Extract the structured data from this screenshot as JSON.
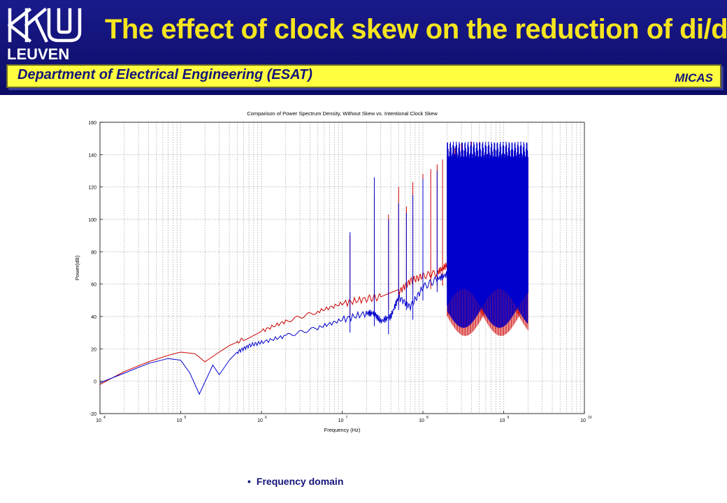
{
  "header": {
    "logo_text": "LEUVEN",
    "title": "The effect of clock skew on the reduction of di/dt",
    "department": "Department of Electrical Engineering (ESAT)",
    "group": "MICAS"
  },
  "colors": {
    "header_bg": "#0c0c66",
    "title": "#f5e51f",
    "band": "#ffff40",
    "text": "#14147a",
    "series_without_skew": "#cc0000",
    "series_skew": "#0000cc"
  },
  "bullet": {
    "marker": "•",
    "text": "Frequency  domain"
  },
  "chart_data": {
    "type": "line",
    "title": "Comparison of Power Spectrum Density, Without Skew vs. Intentional Clock Skew",
    "xlabel": "Frequency (Hz)",
    "ylabel": "Power(dB)",
    "xscale": "log",
    "xlim": [
      10000,
      10000000000
    ],
    "ylim": [
      -20,
      160
    ],
    "grid": true,
    "x_ticks": [
      {
        "base": "10",
        "exp": "4"
      },
      {
        "base": "10",
        "exp": "5"
      },
      {
        "base": "10",
        "exp": "6"
      },
      {
        "base": "10",
        "exp": "7"
      },
      {
        "base": "10",
        "exp": "8"
      },
      {
        "base": "10",
        "exp": "9"
      },
      {
        "base": "10",
        "exp": "10"
      }
    ],
    "y_ticks": [
      "-20",
      "0",
      "20",
      "40",
      "60",
      "80",
      "100",
      "120",
      "140",
      "160"
    ],
    "series": [
      {
        "color": "#cc0000",
        "x": [
          10000,
          20000,
          40000,
          70000,
          100000,
          150000,
          200000,
          300000,
          400000,
          600000,
          1000000,
          2000000,
          5000000,
          10000000,
          20000000,
          30000000,
          50000000,
          70000000,
          100000000,
          150000000,
          200000000,
          300000000,
          500000000,
          700000000,
          1000000000,
          2000000000
        ],
        "y": [
          -2,
          6,
          12,
          16,
          18,
          17,
          12,
          18,
          22,
          26,
          31,
          37,
          43,
          48,
          51,
          52,
          55,
          62,
          65,
          67,
          72,
          76,
          82,
          86,
          88,
          90
        ],
        "peaks": [
          {
            "x": 12500000,
            "y": 90
          },
          {
            "x": 25000000,
            "y": 115
          },
          {
            "x": 37500000,
            "y": 103
          },
          {
            "x": 50000000,
            "y": 120
          },
          {
            "x": 62500000,
            "y": 108
          },
          {
            "x": 75000000,
            "y": 123
          },
          {
            "x": 100000000,
            "y": 128
          },
          {
            "x": 125000000,
            "y": 131
          },
          {
            "x": 150000000,
            "y": 134
          },
          {
            "x": 175000000,
            "y": 137
          },
          {
            "x": 200000000,
            "y": 140
          },
          {
            "x": 250000000,
            "y": 144
          },
          {
            "x": 300000000,
            "y": 147
          },
          {
            "x": 400000000,
            "y": 148
          },
          {
            "x": 500000000,
            "y": 148
          }
        ]
      },
      {
        "color": "#0000cc",
        "x": [
          10000,
          20000,
          40000,
          70000,
          100000,
          130000,
          170000,
          250000,
          300000,
          400000,
          500000,
          700000,
          1000000,
          2000000,
          5000000,
          10000000,
          20000000,
          25000000,
          30000000,
          40000000,
          50000000,
          70000000,
          100000000,
          150000000,
          200000000,
          300000000,
          500000000,
          700000000,
          1000000000,
          2000000000
        ],
        "y": [
          -1,
          5,
          11,
          14,
          13,
          5,
          -8,
          10,
          4,
          13,
          18,
          22,
          24,
          28,
          33,
          38,
          42,
          42,
          37,
          40,
          52,
          46,
          58,
          63,
          66,
          70,
          74,
          78,
          80,
          82
        ],
        "peaks": [
          {
            "x": 12500000,
            "y": 92
          },
          {
            "x": 25000000,
            "y": 126
          },
          {
            "x": 37500000,
            "y": 100
          },
          {
            "x": 50000000,
            "y": 110
          },
          {
            "x": 62500000,
            "y": 104
          },
          {
            "x": 75000000,
            "y": 115
          },
          {
            "x": 100000000,
            "y": 125
          },
          {
            "x": 150000000,
            "y": 130
          },
          {
            "x": 200000000,
            "y": 136
          },
          {
            "x": 300000000,
            "y": 142
          },
          {
            "x": 500000000,
            "y": 147
          }
        ]
      }
    ]
  }
}
